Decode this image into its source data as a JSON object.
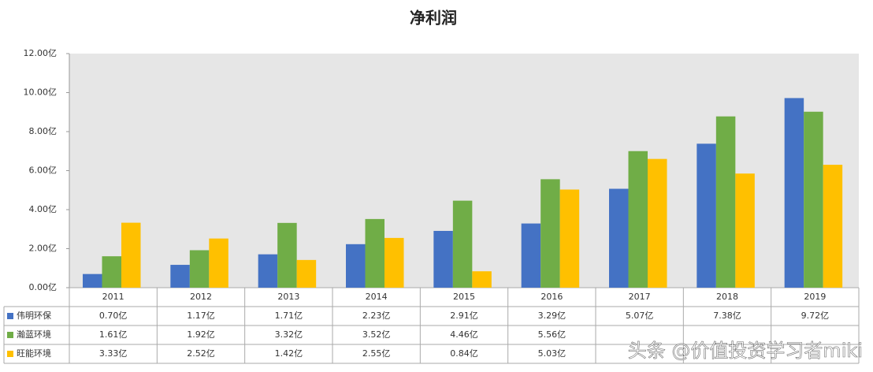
{
  "chart_data": {
    "type": "bar",
    "title": "净利润",
    "categories": [
      "2011",
      "2012",
      "2013",
      "2014",
      "2015",
      "2016",
      "2017",
      "2018",
      "2019"
    ],
    "series": [
      {
        "name": "伟明环保",
        "color": "#4472c4",
        "values": [
          0.7,
          1.17,
          1.71,
          2.23,
          2.91,
          3.29,
          5.07,
          7.38,
          9.72
        ],
        "value_labels": [
          "0.70亿",
          "1.17亿",
          "1.71亿",
          "2.23亿",
          "2.91亿",
          "3.29亿",
          "5.07亿",
          "7.38亿",
          "9.72亿"
        ]
      },
      {
        "name": "瀚蓝环境",
        "color": "#70ad47",
        "values": [
          1.61,
          1.92,
          3.32,
          3.52,
          4.46,
          5.56,
          7.0,
          8.78,
          9.02
        ],
        "value_labels": [
          "1.61亿",
          "1.92亿",
          "3.32亿",
          "3.52亿",
          "4.46亿",
          "5.56亿",
          null,
          null,
          null
        ]
      },
      {
        "name": "旺能环境",
        "color": "#ffc000",
        "values": [
          3.33,
          2.52,
          1.42,
          2.55,
          0.84,
          5.03,
          6.6,
          5.85,
          6.3
        ],
        "value_labels": [
          "3.33亿",
          "2.52亿",
          "1.42亿",
          "2.55亿",
          "0.84亿",
          "5.03亿",
          null,
          null,
          null
        ]
      }
    ],
    "ylim": [
      0,
      12
    ],
    "yticks": [
      {
        "value": 0,
        "label": "0.00亿"
      },
      {
        "value": 2,
        "label": "2.00亿"
      },
      {
        "value": 4,
        "label": "4.00亿"
      },
      {
        "value": 6,
        "label": "6.00亿"
      },
      {
        "value": 8,
        "label": "8.00亿"
      },
      {
        "value": 10,
        "label": "10.00亿"
      },
      {
        "value": 12,
        "label": "12.00亿"
      }
    ],
    "grid": false,
    "watermark": "头条 @价值投资学习者miki"
  }
}
